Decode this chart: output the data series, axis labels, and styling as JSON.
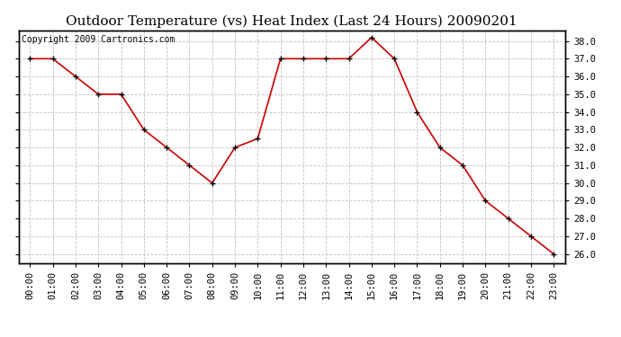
{
  "title": "Outdoor Temperature (vs) Heat Index (Last 24 Hours) 20090201",
  "copyright_text": "Copyright 2009 Cartronics.com",
  "x_labels": [
    "00:00",
    "01:00",
    "02:00",
    "03:00",
    "04:00",
    "05:00",
    "06:00",
    "07:00",
    "08:00",
    "09:00",
    "10:00",
    "11:00",
    "12:00",
    "13:00",
    "14:00",
    "15:00",
    "16:00",
    "17:00",
    "18:00",
    "19:00",
    "20:00",
    "21:00",
    "22:00",
    "23:00"
  ],
  "y_values": [
    37.0,
    37.0,
    36.0,
    35.0,
    35.0,
    33.0,
    32.0,
    31.0,
    30.0,
    32.0,
    32.5,
    37.0,
    37.0,
    37.0,
    37.0,
    38.2,
    37.0,
    34.0,
    32.0,
    31.0,
    29.0,
    28.0,
    27.0,
    26.0
  ],
  "ylim_min": 25.5,
  "ylim_max": 38.6,
  "yticks": [
    26.0,
    27.0,
    28.0,
    29.0,
    30.0,
    31.0,
    32.0,
    33.0,
    34.0,
    35.0,
    36.0,
    37.0,
    38.0
  ],
  "line_color": "#cc0000",
  "marker_color": "#000000",
  "bg_color": "#ffffff",
  "plot_bg_color": "#ffffff",
  "grid_color": "#c0c0c0",
  "title_fontsize": 11,
  "tick_fontsize": 7.5,
  "copyright_fontsize": 7
}
